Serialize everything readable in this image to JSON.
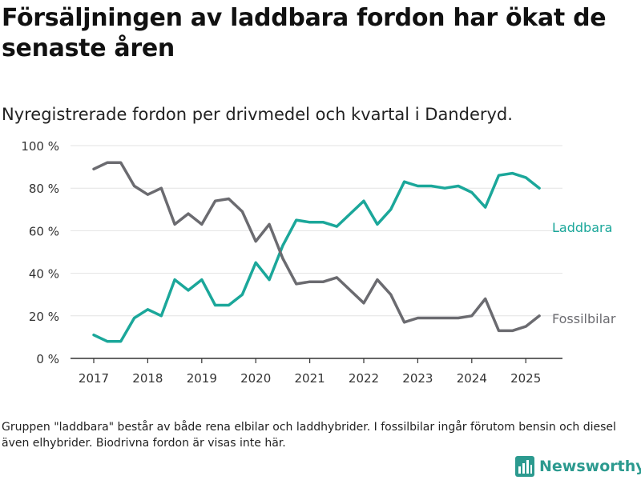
{
  "title": "Försäljningen av laddbara fordon har ökat de senaste åren",
  "subtitle": "Nyregistrerade fordon per drivmedel och kvartal i Danderyd.",
  "footnote": "Gruppen \"laddbara\" består av både rena elbilar och laddhybrider. I fossilbilar ingår förutom bensin och diesel även elhybrider. Biodrivna fordon är visas inte här.",
  "brand": {
    "name": "Newsworthy",
    "icon": "newsworthy-chart-icon",
    "color": "#2c9a8f"
  },
  "colors": {
    "laddbara": "#1ba79a",
    "fossilbilar": "#6b6b70",
    "grid": "#e3e3e3",
    "axis": "#333333"
  },
  "chart_data": {
    "type": "line",
    "title": "Försäljningen av laddbara fordon har ökat de senaste åren",
    "subtitle": "Nyregistrerade fordon per drivmedel och kvartal i Danderyd.",
    "x_unit": "quarter",
    "x": [
      "2017-Q1",
      "2017-Q2",
      "2017-Q3",
      "2017-Q4",
      "2018-Q1",
      "2018-Q2",
      "2018-Q3",
      "2018-Q4",
      "2019-Q1",
      "2019-Q2",
      "2019-Q3",
      "2019-Q4",
      "2020-Q1",
      "2020-Q2",
      "2020-Q3",
      "2020-Q4",
      "2021-Q1",
      "2021-Q2",
      "2021-Q3",
      "2021-Q4",
      "2022-Q1",
      "2022-Q2",
      "2022-Q3",
      "2022-Q4",
      "2023-Q1",
      "2023-Q2",
      "2023-Q3",
      "2023-Q4",
      "2024-Q1",
      "2024-Q2",
      "2024-Q3",
      "2024-Q4",
      "2025-Q1",
      "2025-Q2"
    ],
    "x_tick_labels": [
      "2017",
      "2018",
      "2019",
      "2020",
      "2021",
      "2022",
      "2023",
      "2024",
      "2025"
    ],
    "y_tick_labels": [
      "0 %",
      "20 %",
      "40 %",
      "60 %",
      "80 %",
      "100 %"
    ],
    "ylim": [
      0,
      100
    ],
    "grid": true,
    "legend": "direct labels at right end of lines",
    "series": [
      {
        "name": "Laddbara",
        "color": "#1ba79a",
        "values": [
          11,
          8,
          8,
          19,
          23,
          20,
          37,
          32,
          37,
          25,
          25,
          30,
          45,
          37,
          53,
          65,
          64,
          64,
          62,
          68,
          74,
          63,
          70,
          83,
          81,
          81,
          80,
          81,
          78,
          71,
          86,
          87,
          85,
          80
        ]
      },
      {
        "name": "Fossilbilar",
        "color": "#6b6b70",
        "values": [
          89,
          92,
          92,
          81,
          77,
          80,
          63,
          68,
          63,
          74,
          75,
          69,
          55,
          63,
          47,
          35,
          36,
          36,
          38,
          32,
          26,
          37,
          30,
          17,
          19,
          19,
          19,
          19,
          20,
          28,
          13,
          13,
          15,
          20
        ]
      }
    ]
  }
}
